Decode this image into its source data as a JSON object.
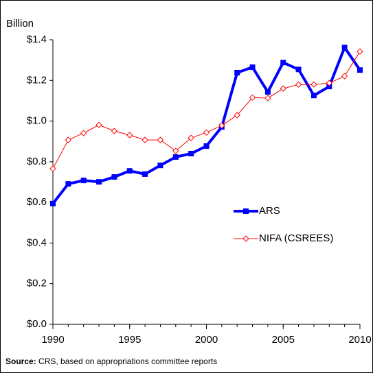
{
  "chart_data": {
    "type": "line",
    "y_label": "Billion",
    "source_label": "Source:",
    "source_text": "CRS, based on appropriations committee reports",
    "x": [
      1990,
      1991,
      1992,
      1993,
      1994,
      1995,
      1996,
      1997,
      1998,
      1999,
      2000,
      2001,
      2002,
      2003,
      2004,
      2005,
      2006,
      2007,
      2008,
      2009,
      2010
    ],
    "series": [
      {
        "name": "ARS",
        "color": "#0000ff",
        "marker": "square",
        "values": [
          0.594,
          0.691,
          0.708,
          0.701,
          0.725,
          0.755,
          0.739,
          0.782,
          0.823,
          0.84,
          0.877,
          0.971,
          1.238,
          1.265,
          1.143,
          1.288,
          1.254,
          1.126,
          1.17,
          1.362,
          1.251
        ]
      },
      {
        "name": "NIFA (CSREES)",
        "color": "#ff0000",
        "marker": "diamond",
        "values": [
          0.766,
          0.907,
          0.941,
          0.981,
          0.951,
          0.931,
          0.907,
          0.907,
          0.853,
          0.917,
          0.944,
          0.978,
          1.029,
          1.116,
          1.113,
          1.16,
          1.18,
          1.18,
          1.187,
          1.221,
          1.342
        ]
      }
    ],
    "xlim": [
      1990,
      2010
    ],
    "xticks": [
      1990,
      1995,
      2000,
      2005,
      2010
    ],
    "ylim": [
      0,
      1.4
    ],
    "yticks": [
      {
        "value": 0,
        "label": "$0.0"
      },
      {
        "value": 0.2,
        "label": "$0.2"
      },
      {
        "value": 0.4,
        "label": "$0.4"
      },
      {
        "value": 0.6,
        "label": "$0.6"
      },
      {
        "value": 0.8,
        "label": "$0.8"
      },
      {
        "value": 1.0,
        "label": "$1.0"
      },
      {
        "value": 1.2,
        "label": "$1.2"
      },
      {
        "value": 1.4,
        "label": "$1.4"
      }
    ]
  }
}
